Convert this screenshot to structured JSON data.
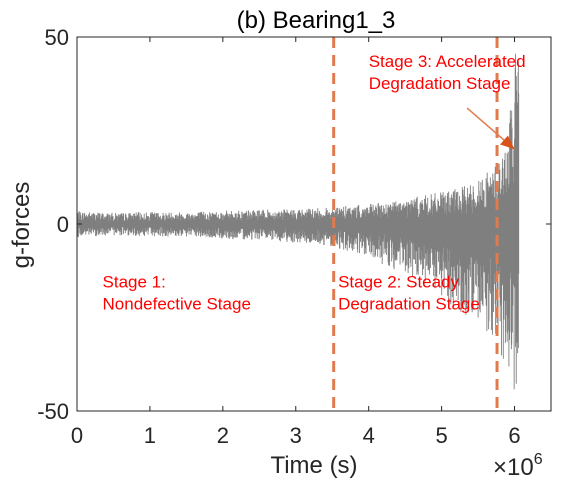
{
  "colors": {
    "signal": "#7f7f7f",
    "boundary": "#e07b4f",
    "annotation": "#ff0000",
    "axis": "#262626"
  },
  "chart_data": {
    "type": "line",
    "title": "(b) Bearing1_3",
    "xlabel": "Time (s)",
    "ylabel": "g-forces",
    "x_exponent_label": "×10",
    "x_exponent_power": "6",
    "xlim": [
      0,
      6.5
    ],
    "ylim": [
      -50,
      50
    ],
    "x_ticks": [
      0,
      1,
      2,
      3,
      4,
      5,
      6
    ],
    "x_tick_labels": [
      "0",
      "1",
      "2",
      "3",
      "4",
      "5",
      "6"
    ],
    "y_ticks": [
      -50,
      0,
      50
    ],
    "y_tick_labels": [
      "-50",
      "0",
      "50"
    ],
    "grid": false,
    "x_end": 6.06,
    "stage_boundaries": [
      3.52,
      5.76
    ],
    "series": [
      {
        "style": "vibration-signal",
        "envelope": {
          "x": [
            0,
            0.5,
            1.0,
            1.5,
            2.0,
            2.5,
            3.0,
            3.5,
            3.8,
            4.1,
            4.4,
            4.7,
            5.0,
            5.3,
            5.5,
            5.7,
            5.8,
            5.9,
            6.0,
            6.06
          ],
          "upper": [
            3.5,
            3.0,
            3.2,
            3.3,
            3.6,
            3.8,
            4.0,
            4.5,
            5.0,
            5.5,
            6.5,
            7.5,
            8.5,
            10,
            12,
            15,
            18,
            22,
            45,
            48
          ],
          "lower": [
            -3.5,
            -3.0,
            -3.3,
            -3.5,
            -4.0,
            -4.2,
            -5.0,
            -6.0,
            -8.0,
            -10,
            -13,
            -16,
            -20,
            -24,
            -27,
            -30,
            -34,
            -40,
            -48,
            -47
          ]
        }
      }
    ],
    "annotations": [
      {
        "text_lines": [
          "Stage 1:",
          "Nondefective Stage"
        ],
        "x": 0.35,
        "y": -17
      },
      {
        "text_lines": [
          "Stage 2: Steady",
          "Degradation Stage"
        ],
        "x": 3.58,
        "y": -17
      },
      {
        "text_lines": [
          "Stage 3: Accelerated",
          "Degradation Stage"
        ],
        "x": 4.0,
        "y": 42
      }
    ],
    "arrow": {
      "from": [
        5.35,
        31
      ],
      "to": [
        6.0,
        20
      ]
    }
  }
}
